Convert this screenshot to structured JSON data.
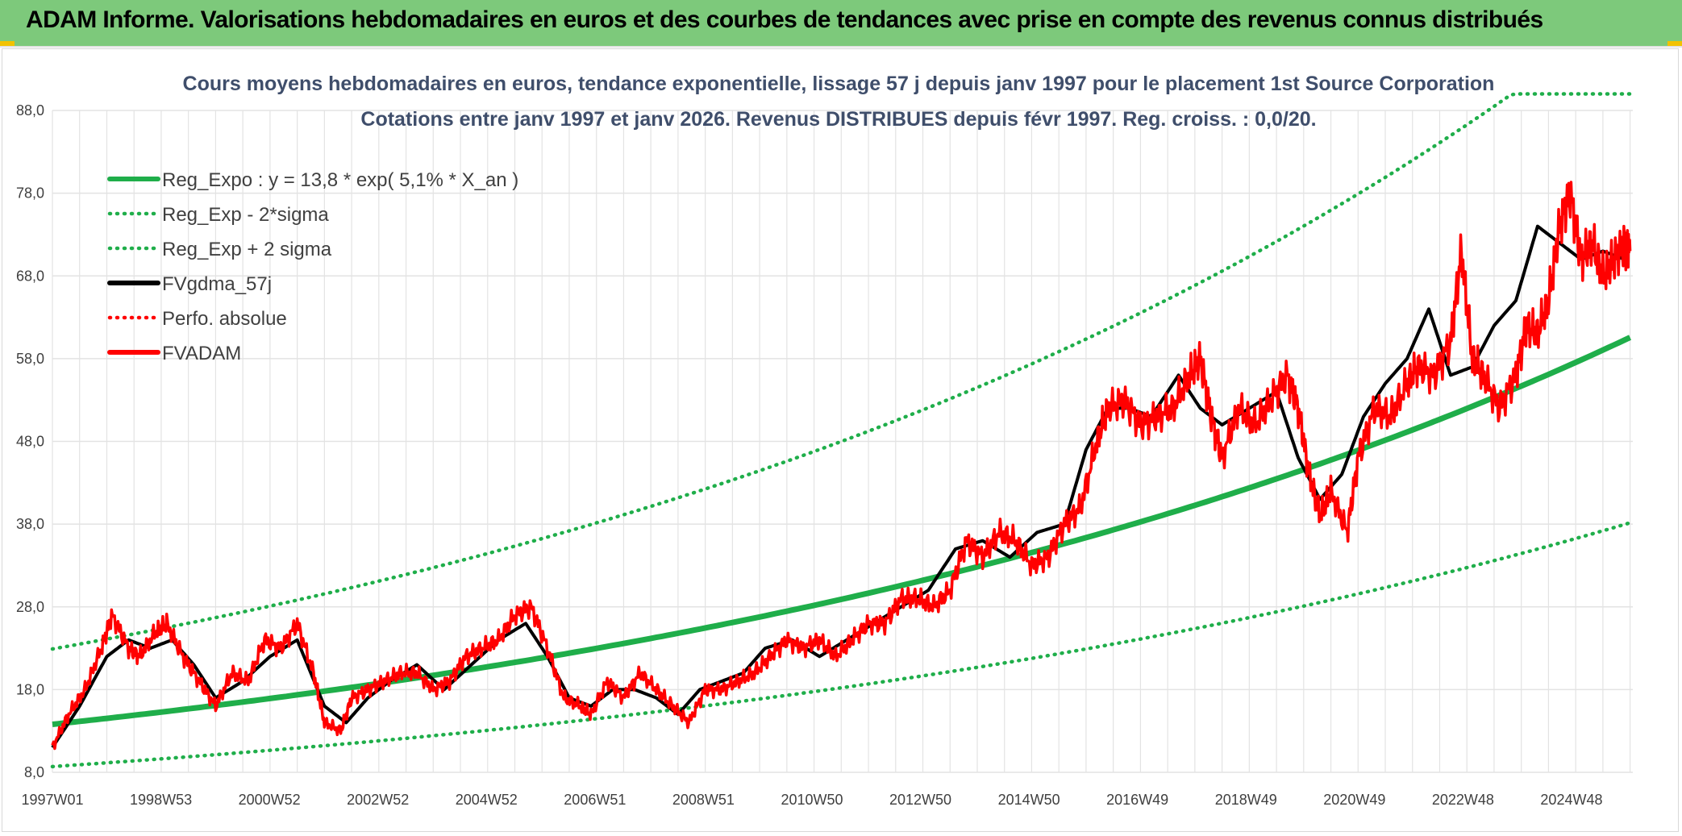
{
  "header": {
    "title": "ADAM Informe. Valorisations hebdomadaires en euros et des courbes de tendances avec prise en compte des revenus connus distribués"
  },
  "colors": {
    "header_bg": "#7dc97b",
    "reg_line": "#1fae4a",
    "sigma_line": "#1fae4a",
    "smooth_line": "#000000",
    "price_line": "#ff0000",
    "grid": "#e3e3e3"
  },
  "chart_data": {
    "type": "line",
    "title_line1": "Cours moyens hebdomadaires en euros, tendance exponentielle, lissage 57 j depuis janv 1997 pour le placement 1st Source Corporation",
    "title_line2": "Cotations entre janv 1997 et janv 2026. Revenus DISTRIBUES depuis févr 1997. Reg. croiss. : 0,0/20.",
    "x_tick_labels": [
      "1997W01",
      "1998W53",
      "2000W52",
      "2002W52",
      "2004W52",
      "2006W51",
      "2008W51",
      "2010W50",
      "2012W50",
      "2014W50",
      "2016W49",
      "2018W49",
      "2020W49",
      "2022W48",
      "2024W48"
    ],
    "x_range_years": [
      1997.0,
      2026.05
    ],
    "y_tick_labels": [
      "8,0",
      "18,0",
      "28,0",
      "38,0",
      "48,0",
      "58,0",
      "68,0",
      "78,0",
      "88,0"
    ],
    "ylim": [
      8,
      88
    ],
    "legend": [
      {
        "label": "Reg_Expo : y = 13,8 * exp( 5,1% *  X_an )",
        "style": "solid",
        "color": "#1fae4a"
      },
      {
        "label": "Reg_Exp - 2*sigma",
        "style": "dotted",
        "color": "#1fae4a"
      },
      {
        "label": "Reg_Exp + 2 sigma",
        "style": "dotted",
        "color": "#1fae4a"
      },
      {
        "label": "FVgdma_57j",
        "style": "solid",
        "color": "#000000"
      },
      {
        "label": "Perfo. absolue",
        "style": "dotted",
        "color": "#ff0000"
      },
      {
        "label": "FVADAM",
        "style": "solid",
        "color": "#ff0000"
      }
    ],
    "regression": {
      "a": 13.8,
      "rate": 0.051,
      "lower_factor": 0.63,
      "upper_factor": 1.66,
      "upper_cap": 90
    },
    "series": [
      {
        "name": "FVADAM",
        "x": [
          1997.0,
          1997.3,
          1997.6,
          1997.9,
          1998.1,
          1998.4,
          1998.6,
          1998.9,
          1999.1,
          1999.4,
          1999.7,
          2000.0,
          2000.3,
          2000.6,
          2000.9,
          2001.2,
          2001.5,
          2001.8,
          2002.0,
          2002.3,
          2002.5,
          2002.8,
          2003.1,
          2003.4,
          2003.7,
          2004.0,
          2004.3,
          2004.6,
          2004.9,
          2005.2,
          2005.5,
          2005.8,
          2006.1,
          2006.4,
          2006.7,
          2006.9,
          2007.2,
          2007.5,
          2007.8,
          2008.1,
          2008.4,
          2008.7,
          2009.0,
          2009.3,
          2009.6,
          2009.9,
          2010.2,
          2010.5,
          2010.8,
          2011.1,
          2011.4,
          2011.7,
          2012.0,
          2012.3,
          2012.6,
          2012.9,
          2013.2,
          2013.5,
          2013.8,
          2014.1,
          2014.4,
          2014.7,
          2015.0,
          2015.3,
          2015.6,
          2015.9,
          2016.2,
          2016.4,
          2016.7,
          2017.0,
          2017.3,
          2017.6,
          2017.9,
          2018.1,
          2018.3,
          2018.5,
          2018.8,
          2019.1,
          2019.4,
          2019.7,
          2019.9,
          2020.1,
          2020.3,
          2020.5,
          2020.8,
          2021.0,
          2021.3,
          2021.6,
          2021.9,
          2022.1,
          2022.4,
          2022.7,
          2022.9,
          2023.1,
          2023.3,
          2023.6,
          2023.9,
          2024.1,
          2024.3,
          2024.5,
          2024.7,
          2024.9,
          2025.1,
          2025.3,
          2025.5,
          2025.7,
          2025.9,
          2026.0
        ],
        "values": [
          11,
          15,
          18,
          23,
          27,
          23,
          22,
          25,
          26,
          22,
          19,
          16,
          20,
          19,
          24,
          23,
          26,
          20,
          14,
          13,
          17,
          18,
          19,
          20,
          20,
          18,
          19,
          22,
          23,
          24,
          27,
          28,
          23,
          17,
          16,
          15,
          19,
          17,
          20,
          18,
          16,
          14,
          18,
          18,
          19,
          20,
          22,
          24,
          23,
          24,
          22,
          24,
          26,
          26,
          29,
          29,
          28,
          30,
          36,
          34,
          37,
          36,
          33,
          34,
          38,
          40,
          48,
          52,
          53,
          50,
          51,
          52,
          56,
          58,
          51,
          46,
          52,
          50,
          53,
          56,
          52,
          44,
          39,
          42,
          37,
          46,
          52,
          51,
          55,
          57,
          56,
          60,
          71,
          58,
          56,
          52,
          56,
          62,
          61,
          65,
          74,
          78,
          70,
          72,
          68,
          70,
          72,
          71
        ]
      },
      {
        "name": "FVgdma_57j",
        "x": [
          1997.0,
          1997.5,
          1998.0,
          1998.4,
          1998.8,
          1999.2,
          1999.6,
          2000.0,
          2000.5,
          2001.0,
          2001.5,
          2002.0,
          2002.4,
          2002.8,
          2003.2,
          2003.7,
          2004.2,
          2004.7,
          2005.2,
          2005.7,
          2006.1,
          2006.5,
          2006.9,
          2007.3,
          2007.7,
          2008.1,
          2008.5,
          2008.9,
          2009.3,
          2009.7,
          2010.1,
          2010.6,
          2011.1,
          2011.6,
          2012.1,
          2012.6,
          2013.1,
          2013.6,
          2014.1,
          2014.6,
          2015.1,
          2015.6,
          2016.0,
          2016.4,
          2016.8,
          2017.2,
          2017.7,
          2018.1,
          2018.5,
          2019.0,
          2019.5,
          2019.9,
          2020.3,
          2020.7,
          2021.1,
          2021.5,
          2021.9,
          2022.3,
          2022.7,
          2023.1,
          2023.5,
          2023.9,
          2024.3,
          2024.7,
          2025.1,
          2025.5,
          2025.9
        ],
        "values": [
          11,
          16,
          22,
          24,
          23,
          24,
          21,
          17,
          19,
          22,
          24,
          16,
          14,
          17,
          19,
          21,
          18,
          21,
          24,
          26,
          22,
          17,
          16,
          18,
          18,
          17,
          15,
          18,
          19,
          20,
          23,
          24,
          22,
          24,
          26,
          28,
          30,
          35,
          36,
          34,
          37,
          38,
          47,
          52,
          52,
          51,
          56,
          52,
          50,
          52,
          54,
          46,
          41,
          44,
          51,
          55,
          58,
          64,
          56,
          57,
          62,
          65,
          74,
          72,
          70,
          71,
          70
        ]
      }
    ]
  }
}
